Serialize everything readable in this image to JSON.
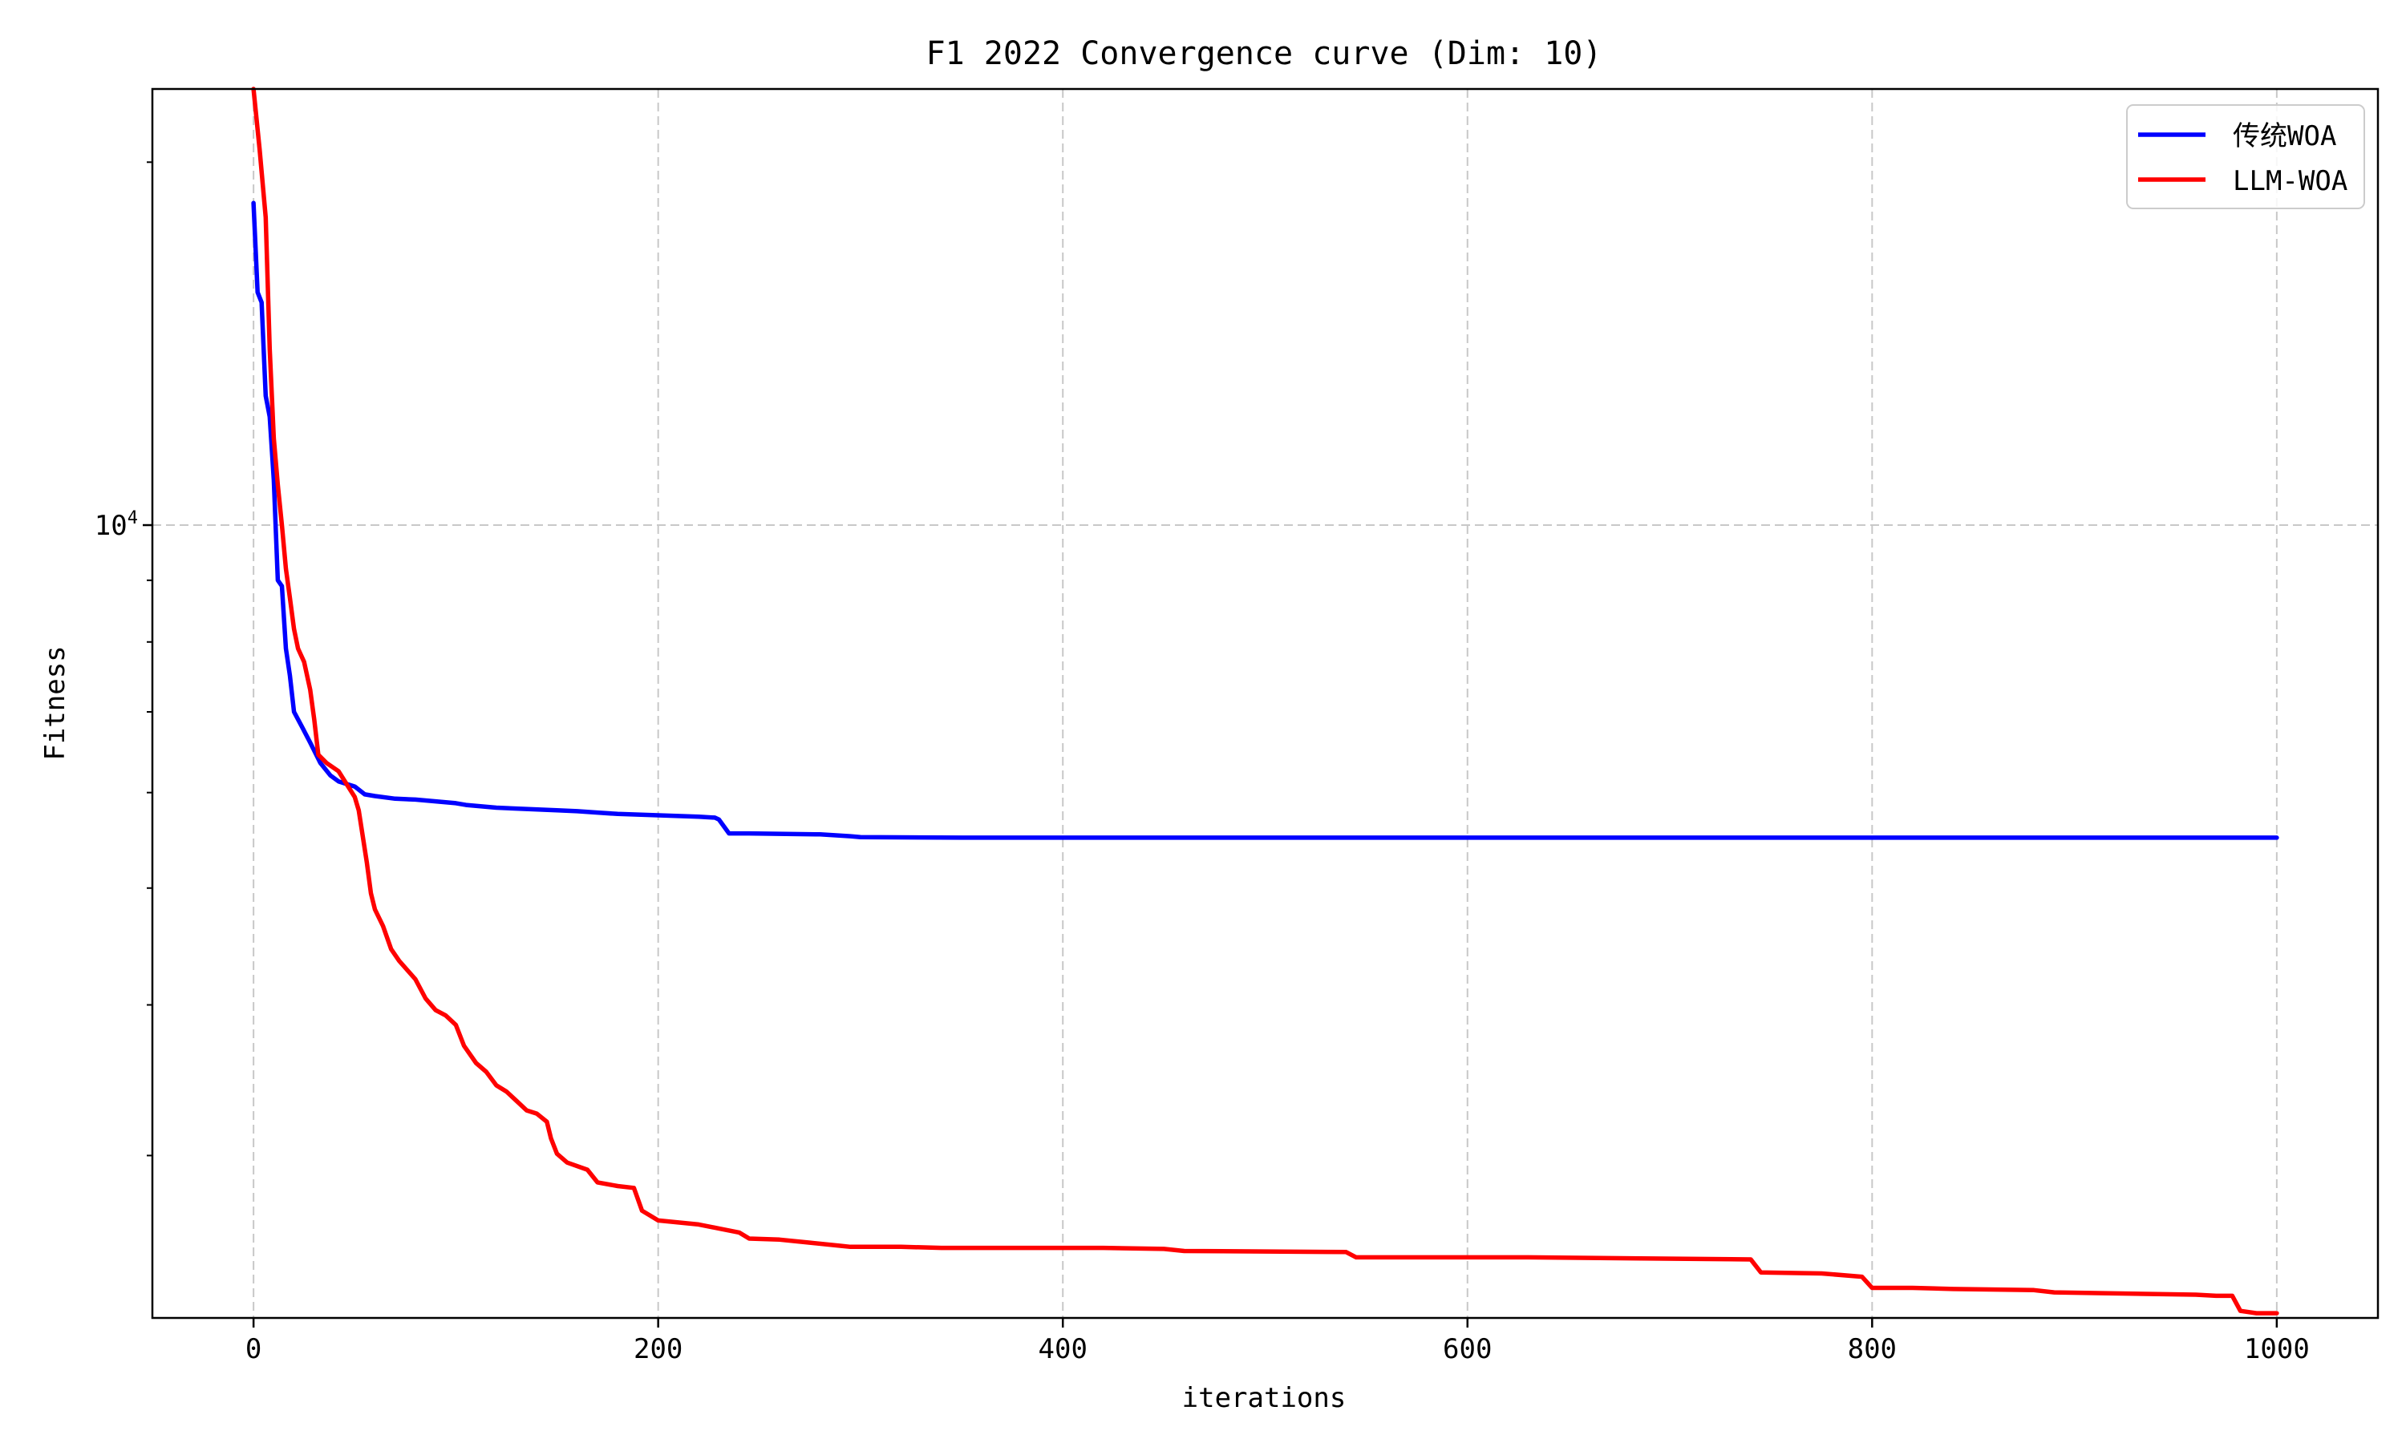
{
  "chart_data": {
    "type": "line",
    "title": "F1 2022 Convergence curve (Dim: 10)",
    "xlabel": "iterations",
    "ylabel": "Fitness",
    "xlim": [
      -50,
      1050
    ],
    "ylim": [
      2200,
      23000
    ],
    "yscale": "log",
    "grid": true,
    "legend_position": "top-right",
    "x_ticks": [
      0,
      200,
      400,
      600,
      800,
      1000
    ],
    "x_tick_labels": [
      "0",
      "200",
      "400",
      "600",
      "800",
      "1000"
    ],
    "y_major_tick": {
      "value": 10000,
      "base": "10",
      "exponent": "4"
    },
    "y_minor_ticks": [
      3000,
      4000,
      5000,
      6000,
      7000,
      8000,
      9000,
      20000
    ],
    "series": [
      {
        "name": "传统WOA",
        "color": "#0000ff",
        "points": [
          [
            0,
            18500
          ],
          [
            2,
            15600
          ],
          [
            4,
            15300
          ],
          [
            6,
            12800
          ],
          [
            8,
            12300
          ],
          [
            10,
            10900
          ],
          [
            12,
            9000
          ],
          [
            14,
            8900
          ],
          [
            16,
            7900
          ],
          [
            18,
            7500
          ],
          [
            20,
            7000
          ],
          [
            24,
            6800
          ],
          [
            28,
            6600
          ],
          [
            30,
            6500
          ],
          [
            33,
            6350
          ],
          [
            38,
            6200
          ],
          [
            42,
            6130
          ],
          [
            50,
            6070
          ],
          [
            55,
            5980
          ],
          [
            60,
            5960
          ],
          [
            70,
            5930
          ],
          [
            80,
            5920
          ],
          [
            100,
            5880
          ],
          [
            105,
            5860
          ],
          [
            120,
            5830
          ],
          [
            150,
            5800
          ],
          [
            160,
            5790
          ],
          [
            170,
            5775
          ],
          [
            180,
            5760
          ],
          [
            200,
            5745
          ],
          [
            220,
            5730
          ],
          [
            228,
            5720
          ],
          [
            230,
            5700
          ],
          [
            235,
            5550
          ],
          [
            245,
            5550
          ],
          [
            280,
            5540
          ],
          [
            295,
            5520
          ],
          [
            300,
            5510
          ],
          [
            350,
            5505
          ],
          [
            1000,
            5505
          ]
        ]
      },
      {
        "name": "LLM-WOA",
        "color": "#ff0000",
        "points": [
          [
            0,
            23000
          ],
          [
            3,
            20500
          ],
          [
            6,
            18000
          ],
          [
            8,
            14000
          ],
          [
            10,
            11800
          ],
          [
            12,
            10800
          ],
          [
            14,
            10000
          ],
          [
            16,
            9200
          ],
          [
            18,
            8700
          ],
          [
            20,
            8200
          ],
          [
            22,
            7900
          ],
          [
            25,
            7700
          ],
          [
            28,
            7300
          ],
          [
            30,
            6900
          ],
          [
            32,
            6450
          ],
          [
            36,
            6350
          ],
          [
            42,
            6250
          ],
          [
            50,
            5950
          ],
          [
            52,
            5800
          ],
          [
            56,
            5250
          ],
          [
            58,
            4950
          ],
          [
            60,
            4800
          ],
          [
            64,
            4650
          ],
          [
            68,
            4450
          ],
          [
            72,
            4350
          ],
          [
            80,
            4200
          ],
          [
            85,
            4050
          ],
          [
            90,
            3960
          ],
          [
            95,
            3920
          ],
          [
            100,
            3850
          ],
          [
            104,
            3700
          ],
          [
            110,
            3580
          ],
          [
            115,
            3520
          ],
          [
            120,
            3430
          ],
          [
            125,
            3390
          ],
          [
            130,
            3330
          ],
          [
            135,
            3270
          ],
          [
            140,
            3250
          ],
          [
            145,
            3200
          ],
          [
            147,
            3100
          ],
          [
            150,
            3010
          ],
          [
            155,
            2960
          ],
          [
            165,
            2920
          ],
          [
            170,
            2850
          ],
          [
            180,
            2830
          ],
          [
            188,
            2820
          ],
          [
            192,
            2700
          ],
          [
            200,
            2650
          ],
          [
            210,
            2640
          ],
          [
            220,
            2630
          ],
          [
            230,
            2610
          ],
          [
            240,
            2590
          ],
          [
            245,
            2560
          ],
          [
            260,
            2555
          ],
          [
            275,
            2540
          ],
          [
            290,
            2525
          ],
          [
            295,
            2520
          ],
          [
            320,
            2520
          ],
          [
            340,
            2515
          ],
          [
            360,
            2515
          ],
          [
            380,
            2515
          ],
          [
            400,
            2515
          ],
          [
            420,
            2515
          ],
          [
            450,
            2510
          ],
          [
            460,
            2500
          ],
          [
            540,
            2495
          ],
          [
            545,
            2470
          ],
          [
            630,
            2470
          ],
          [
            740,
            2460
          ],
          [
            745,
            2400
          ],
          [
            775,
            2395
          ],
          [
            795,
            2380
          ],
          [
            800,
            2330
          ],
          [
            820,
            2330
          ],
          [
            840,
            2325
          ],
          [
            880,
            2320
          ],
          [
            890,
            2310
          ],
          [
            960,
            2300
          ],
          [
            970,
            2295
          ],
          [
            978,
            2295
          ],
          [
            982,
            2230
          ],
          [
            990,
            2220
          ],
          [
            1000,
            2220
          ]
        ]
      }
    ]
  }
}
